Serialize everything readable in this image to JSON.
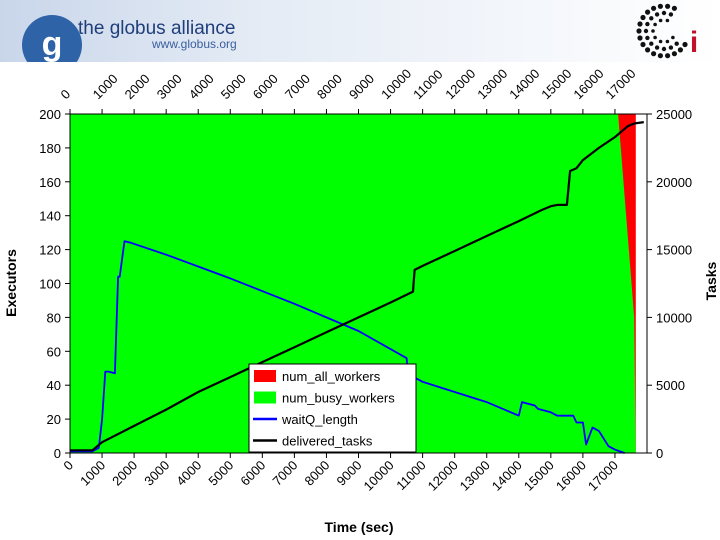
{
  "header": {
    "logo_letter": "g",
    "org_name": "the globus alliance",
    "org_url": "www.globus.org",
    "right_logo_letter": "i"
  },
  "chart_data": {
    "type": "area",
    "title": "",
    "xlabel": "Time (sec)",
    "ylabel": "Executors",
    "y2label": "Tasks",
    "xlim": [
      0,
      18000
    ],
    "ylim": [
      0,
      200
    ],
    "y2lim": [
      0,
      25000
    ],
    "x_ticks": [
      "0",
      "1000",
      "2000",
      "3000",
      "4000",
      "5000",
      "6000",
      "7000",
      "8000",
      "9000",
      "10000",
      "11000",
      "12000",
      "13000",
      "14000",
      "15000",
      "16000",
      "17000"
    ],
    "y_ticks": [
      "0",
      "20",
      "40",
      "60",
      "80",
      "100",
      "120",
      "140",
      "160",
      "180",
      "200"
    ],
    "y2_ticks": [
      "0",
      "5000",
      "10000",
      "15000",
      "20000",
      "25000"
    ],
    "grid": false,
    "legend_position": "bottom-center",
    "series": [
      {
        "name": "num_all_workers",
        "color": "#ff0000",
        "axis": "left",
        "x": [
          0,
          17100,
          17600,
          17650,
          17650,
          18000
        ],
        "y": [
          200,
          200,
          200,
          200,
          0,
          0
        ]
      },
      {
        "name": "num_busy_workers",
        "color": "#00ff00",
        "axis": "left",
        "x": [
          0,
          17100,
          17600,
          17650,
          17650,
          18000
        ],
        "y": [
          200,
          200,
          80,
          0,
          0,
          0
        ]
      },
      {
        "name": "waitQ_length",
        "color": "#0000ff",
        "axis": "left",
        "x": [
          0,
          700,
          900,
          1000,
          1100,
          1200,
          1400,
          1500,
          1550,
          1700,
          1900,
          3000,
          5000,
          7000,
          9000,
          10500,
          10600,
          10700,
          11000,
          12000,
          13000,
          14000,
          14100,
          14500,
          14600,
          15000,
          15200,
          15700,
          15800,
          16000,
          16100,
          16300,
          16500,
          16800,
          17000,
          17300
        ],
        "y": [
          1,
          1,
          3,
          20,
          48,
          48,
          47,
          104,
          104,
          125,
          124,
          117,
          103,
          88,
          72,
          56,
          35,
          45,
          42,
          36,
          30,
          22,
          30,
          28,
          26,
          24,
          22,
          22,
          18,
          18,
          5,
          15,
          13,
          4,
          2,
          0
        ]
      },
      {
        "name": "delivered_tasks",
        "color": "#000000",
        "axis": "right",
        "x": [
          0,
          700,
          1000,
          2000,
          3000,
          4000,
          5000,
          6000,
          7000,
          8000,
          9000,
          10000,
          10700,
          10750,
          11000,
          12000,
          13000,
          14000,
          14700,
          15000,
          15200,
          15500,
          15600,
          15800,
          16000,
          16500,
          17000,
          17400,
          17600,
          17900
        ],
        "y": [
          200,
          200,
          800,
          2000,
          3200,
          4500,
          5600,
          6700,
          7800,
          8900,
          10000,
          11100,
          11900,
          13500,
          13800,
          14900,
          16000,
          17100,
          17900,
          18200,
          18300,
          18300,
          20800,
          21000,
          21600,
          22500,
          23300,
          24100,
          24300,
          24400
        ]
      }
    ]
  }
}
